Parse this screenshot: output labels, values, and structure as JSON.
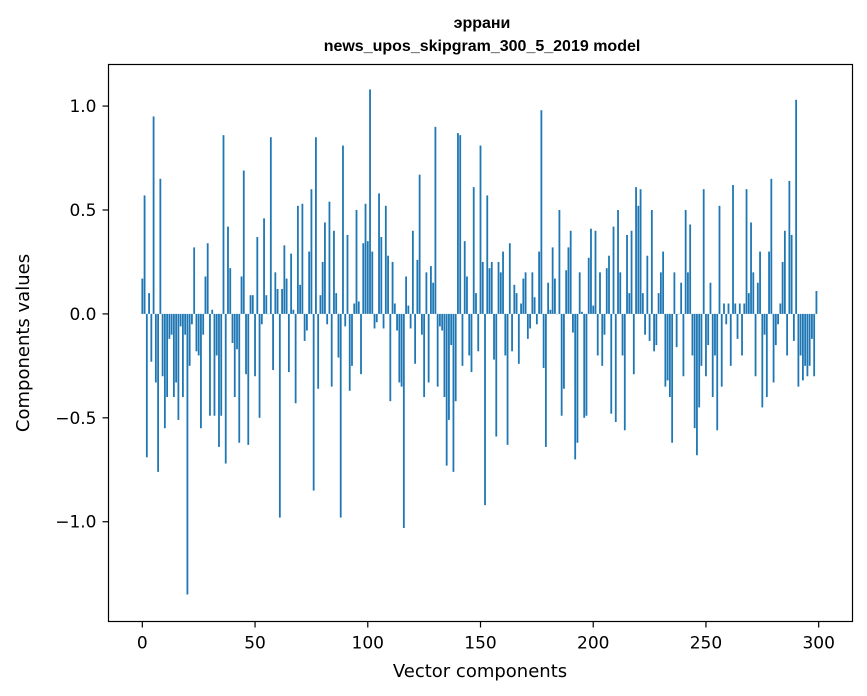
{
  "chart_data": {
    "type": "bar",
    "title_line1": "эррани",
    "title_line2": "news_upos_skipgram_300_5_2019 model",
    "xlabel": "Vector components",
    "ylabel": "Components values",
    "xlim": [
      -15,
      315
    ],
    "ylim": [
      -1.48,
      1.2
    ],
    "xticks": [
      0,
      50,
      100,
      150,
      200,
      250,
      300
    ],
    "xtick_labels": [
      "0",
      "50",
      "100",
      "150",
      "200",
      "250",
      "300"
    ],
    "yticks": [
      -1.0,
      -0.5,
      0.0,
      0.5,
      1.0
    ],
    "ytick_labels": [
      "−1.0",
      "−0.5",
      "0.0",
      "0.5",
      "1.0"
    ],
    "grid": false,
    "color": "#1f77b4",
    "x_start": 0,
    "values": [
      0.17,
      0.57,
      -0.69,
      0.1,
      -0.23,
      0.95,
      -0.33,
      -0.76,
      0.65,
      -0.3,
      -0.55,
      -0.4,
      -0.12,
      -0.1,
      -0.4,
      -0.33,
      -0.51,
      -0.06,
      -0.4,
      -0.1,
      -1.35,
      -0.25,
      -0.05,
      0.32,
      -0.18,
      -0.2,
      -0.55,
      -0.1,
      0.18,
      0.34,
      -0.49,
      0.02,
      -0.49,
      -0.2,
      -0.64,
      -0.49,
      0.86,
      -0.72,
      0.42,
      0.22,
      -0.14,
      -0.4,
      -0.17,
      -0.62,
      0.18,
      0.69,
      -0.29,
      -0.63,
      0.09,
      0.09,
      -0.3,
      0.37,
      -0.5,
      -0.05,
      0.46,
      0.09,
      0.0,
      0.85,
      -0.27,
      0.2,
      0.12,
      -0.98,
      0.12,
      0.33,
      0.17,
      -0.28,
      0.29,
      0.02,
      -0.43,
      0.52,
      0.14,
      0.53,
      -0.13,
      -0.08,
      0.3,
      0.6,
      -0.85,
      0.85,
      -0.36,
      0.09,
      0.25,
      0.44,
      -0.05,
      0.54,
      -0.35,
      0.4,
      0.1,
      -0.21,
      -0.98,
      0.81,
      -0.06,
      0.38,
      -0.37,
      -0.25,
      0.05,
      0.5,
      0.06,
      -0.29,
      0.34,
      0.53,
      0.35,
      1.08,
      0.3,
      -0.07,
      -0.04,
      0.58,
      0.37,
      -0.07,
      0.52,
      0.28,
      -0.42,
      0.25,
      0.05,
      -0.08,
      -0.33,
      -0.35,
      -1.03,
      0.18,
      0.04,
      -0.07,
      0.4,
      -0.24,
      0.26,
      0.67,
      -0.1,
      -0.4,
      0.2,
      -0.33,
      0.23,
      0.15,
      0.9,
      -0.35,
      -0.06,
      -0.08,
      -0.4,
      -0.73,
      -0.51,
      -0.15,
      -0.76,
      -0.42,
      0.87,
      0.86,
      -0.25,
      0.35,
      0.18,
      -0.2,
      -0.28,
      0.61,
      0.1,
      -0.18,
      0.81,
      0.25,
      -0.92,
      0.57,
      0.22,
      0.25,
      -0.22,
      -0.59,
      0.25,
      0.2,
      0.3,
      -0.2,
      -0.63,
      0.34,
      -0.18,
      0.14,
      0.1,
      -0.24,
      0.05,
      0.17,
      0.2,
      -0.12,
      -0.07,
      0.2,
      0.08,
      -0.05,
      0.3,
      0.98,
      -0.26,
      -0.64,
      0.15,
      0.02,
      0.32,
      0.17,
      0.0,
      0.5,
      -0.49,
      -0.36,
      0.21,
      0.32,
      0.4,
      -0.09,
      -0.7,
      -0.62,
      0.2,
      0.01,
      -0.5,
      -0.49,
      0.27,
      0.41,
      0.04,
      0.4,
      -0.2,
      0.2,
      -0.25,
      -0.1,
      0.22,
      0.28,
      -0.48,
      0.42,
      -0.52,
      0.5,
      0.2,
      -0.2,
      -0.56,
      0.38,
      0.1,
      0.4,
      -0.29,
      0.61,
      0.52,
      0.6,
      0.1,
      -0.1,
      0.28,
      -0.13,
      0.5,
      -0.18,
      -0.15,
      0.1,
      0.2,
      0.3,
      -0.35,
      -0.32,
      -0.4,
      -0.62,
      0.2,
      -0.16,
      0.0,
      0.15,
      -0.3,
      0.5,
      0.2,
      0.43,
      -0.2,
      -0.55,
      -0.68,
      -0.45,
      -0.25,
      0.6,
      -0.3,
      -0.15,
      0.15,
      -0.4,
      -0.2,
      -0.56,
      0.52,
      -0.35,
      0.05,
      -0.05,
      0.05,
      -0.25,
      0.62,
      0.05,
      -0.12,
      0.05,
      -0.2,
      0.05,
      0.6,
      0.1,
      0.44,
      0.2,
      -0.3,
      0.15,
      0.3,
      -0.45,
      -0.1,
      -0.4,
      0.3,
      0.65,
      -0.33,
      -0.15,
      -0.05,
      0.05,
      0.25,
      0.4,
      -0.2,
      0.64,
      0.38,
      -0.13,
      1.03,
      -0.35,
      -0.2,
      -0.32,
      -0.25,
      -0.3,
      -0.25,
      -0.12,
      -0.3,
      0.11
    ]
  }
}
